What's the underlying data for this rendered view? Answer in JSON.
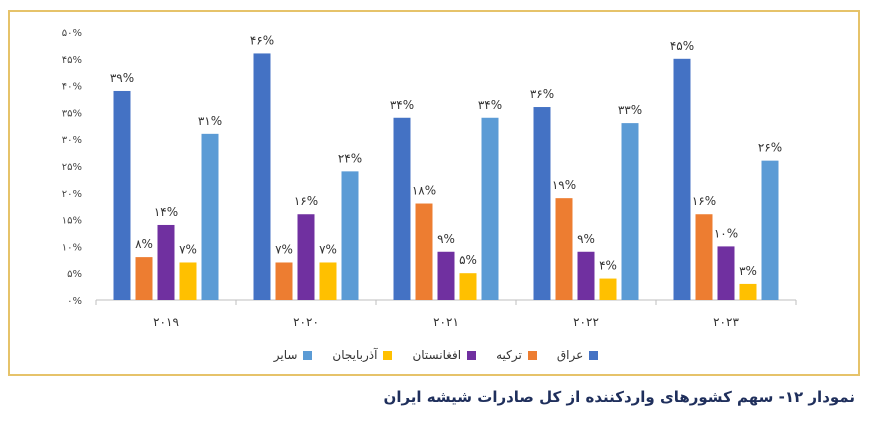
{
  "caption": "نمودار ۱۲- سهم کشورهای واردکننده از کل صادرات شیشه ایران",
  "chart_data": {
    "type": "bar",
    "categories": [
      "۲۰۱۹",
      "۲۰۲۰",
      "۲۰۲۱",
      "۲۰۲۲",
      "۲۰۲۳"
    ],
    "ylim": [
      0,
      50
    ],
    "yticks": [
      0,
      5,
      10,
      15,
      20,
      25,
      30,
      35,
      40,
      45,
      50
    ],
    "ytick_labels": [
      "۰%",
      "۵%",
      "۱۰%",
      "۱۵%",
      "۲۰%",
      "۲۵%",
      "۳۰%",
      "۳۵%",
      "۴۰%",
      "۴۵%",
      "۵۰%"
    ],
    "legend_position": "bottom",
    "grid": false,
    "series": [
      {
        "name": "عراق",
        "color": "#4472c4",
        "values": [
          39,
          46,
          34,
          36,
          45
        ],
        "labels": [
          "۳۹%",
          "۴۶%",
          "۳۴%",
          "۳۶%",
          "۴۵%"
        ]
      },
      {
        "name": "ترکیه",
        "color": "#ed7d31",
        "values": [
          8,
          7,
          18,
          19,
          16
        ],
        "labels": [
          "۸%",
          "۷%",
          "۱۸%",
          "۱۹%",
          "۱۶%"
        ]
      },
      {
        "name": "افغانستان",
        "color": "#7030a0",
        "values": [
          14,
          16,
          9,
          9,
          10
        ],
        "labels": [
          "۱۴%",
          "۱۶%",
          "۹%",
          "۹%",
          "۱۰%"
        ]
      },
      {
        "name": "آذربایجان",
        "color": "#ffc000",
        "values": [
          7,
          7,
          5,
          4,
          3
        ],
        "labels": [
          "۷%",
          "۷%",
          "۵%",
          "۴%",
          "۳%"
        ]
      },
      {
        "name": "سایر",
        "color": "#5b9bd5",
        "values": [
          31,
          24,
          34,
          33,
          26
        ],
        "labels": [
          "۳۱%",
          "۲۴%",
          "۳۴%",
          "۳۳%",
          "۲۶%"
        ]
      }
    ]
  }
}
